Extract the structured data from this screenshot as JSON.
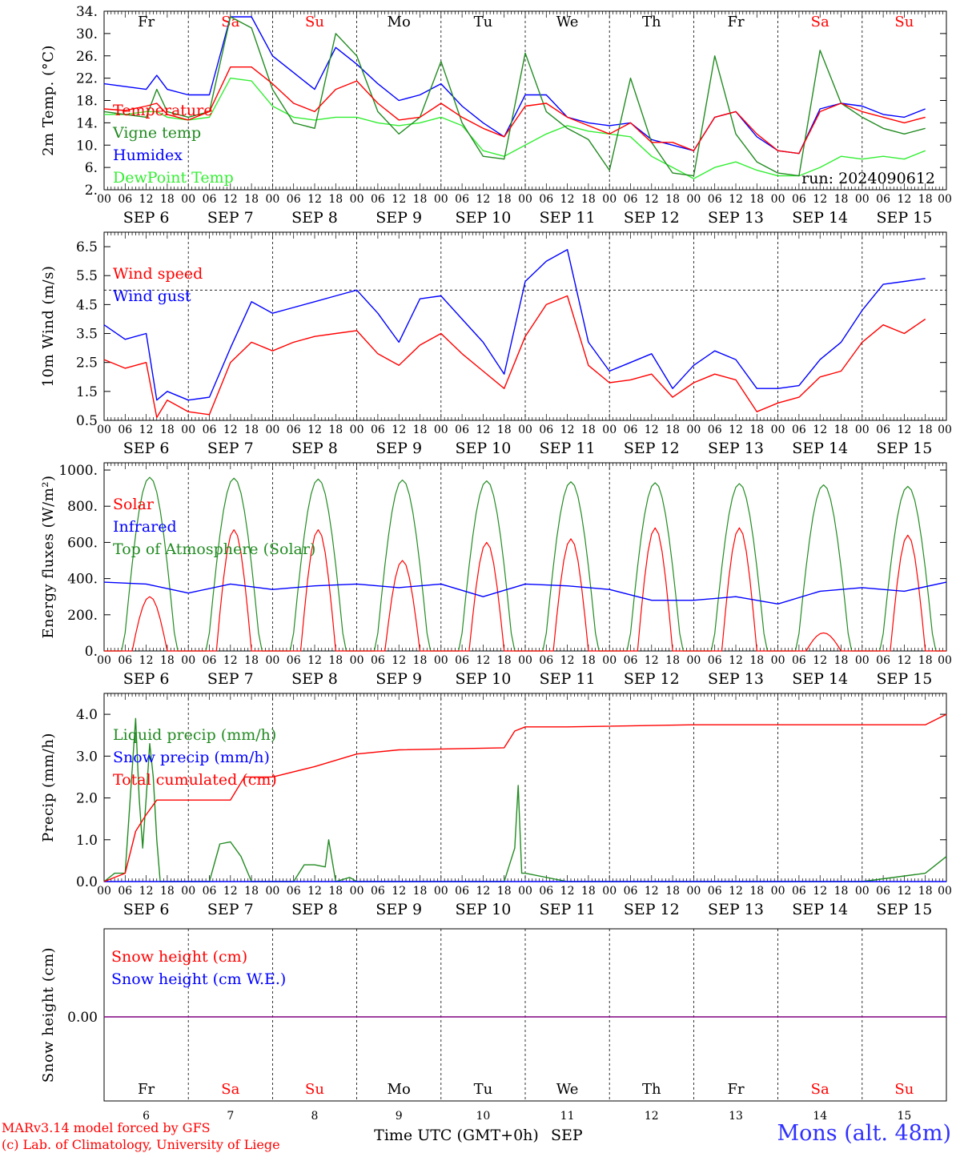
{
  "footer": {
    "model": "MARv3.14 model forced by GFS",
    "credit": "(c) Lab. of Climatology, University of Liege",
    "station": "Mons (alt. 48m)",
    "xaxis_title": "Time UTC (GMT+0h)",
    "month": "SEP"
  },
  "weekdays": [
    "Fr",
    "Sa",
    "Su",
    "Mo",
    "Tu",
    "We",
    "Th",
    "Fr",
    "Sa",
    "Su"
  ],
  "weekend_days": [
    "Sa",
    "Su"
  ],
  "date_labels": [
    "SEP  6",
    "SEP  7",
    "SEP  8",
    "SEP  9",
    "SEP 10",
    "SEP 11",
    "SEP 12",
    "SEP 13",
    "SEP 14",
    "SEP 15"
  ],
  "day_numbers": [
    "6",
    "7",
    "8",
    "9",
    "10",
    "11",
    "12",
    "13",
    "14",
    "15"
  ],
  "hour_ticks": [
    "00",
    "06",
    "12",
    "18"
  ],
  "colors": {
    "red": "#ff0000",
    "darkgreen": "#228b22",
    "blue": "#0000ff",
    "lightgreen": "#33ee33",
    "purple": "#800080",
    "weekend": "#ff0000",
    "weekday": "#000000"
  },
  "chart_data": [
    {
      "type": "line",
      "ylabel": "2m Temp. (°C)",
      "ylim": [
        2,
        34
      ],
      "yticks": [
        "34.",
        "30.",
        "26.",
        "22.",
        "18.",
        "14.",
        "10.",
        "6.",
        "2."
      ],
      "annotation": "run: 2024090612",
      "x_unit": "hours from Sep 6 00:00 UTC",
      "series": [
        {
          "name": "Temperature",
          "color": "red",
          "x": [
            0,
            6,
            12,
            15,
            18,
            24,
            30,
            36,
            42,
            48,
            54,
            60,
            66,
            72,
            78,
            84,
            90,
            96,
            102,
            108,
            114,
            120,
            126,
            132,
            138,
            144,
            150,
            156,
            162,
            168,
            174,
            180,
            186,
            192,
            198,
            204,
            210,
            216,
            222,
            228,
            234
          ],
          "y": [
            16.5,
            16.2,
            17,
            17.5,
            15.5,
            14.5,
            16,
            24,
            24,
            21,
            17.5,
            16,
            20,
            21.5,
            17.5,
            14.5,
            15,
            17.5,
            15,
            13,
            11.5,
            17,
            17.5,
            15,
            13.5,
            12,
            14,
            10.5,
            10.5,
            9,
            15,
            16,
            12,
            9,
            8.5,
            16,
            17.5,
            16,
            15,
            14,
            15
          ]
        },
        {
          "name": "Vigne temp",
          "color": "darkgreen",
          "x": [
            0,
            6,
            12,
            15,
            18,
            24,
            30,
            36,
            42,
            48,
            54,
            60,
            66,
            72,
            78,
            84,
            90,
            96,
            102,
            108,
            114,
            120,
            126,
            132,
            138,
            144,
            150,
            156,
            162,
            168,
            174,
            180,
            186,
            192,
            198,
            204,
            210,
            216,
            222,
            228,
            234
          ],
          "y": [
            16,
            15.5,
            15,
            20,
            16,
            15,
            16,
            33,
            31,
            20,
            14,
            13,
            30,
            26,
            16,
            12,
            15,
            25,
            14,
            8,
            7.5,
            26.5,
            16,
            13,
            11,
            5.5,
            22,
            10.5,
            5,
            4.5,
            26,
            12,
            7,
            5,
            4.5,
            27,
            17.5,
            15,
            13,
            12,
            13
          ]
        },
        {
          "name": "Humidex",
          "color": "blue",
          "x": [
            0,
            6,
            12,
            15,
            18,
            24,
            30,
            36,
            42,
            48,
            54,
            60,
            66,
            72,
            78,
            84,
            90,
            96,
            102,
            108,
            114,
            120,
            126,
            132,
            138,
            144,
            150,
            156,
            162,
            168,
            174,
            180,
            186,
            192,
            198,
            204,
            210,
            216,
            222,
            228,
            234
          ],
          "y": [
            21,
            20.5,
            20,
            22.5,
            20,
            19,
            19,
            33,
            33,
            26,
            23,
            20,
            27.5,
            24.5,
            21,
            18,
            19,
            21,
            17,
            14,
            11.5,
            19,
            19,
            15,
            14,
            13.5,
            14,
            11,
            10,
            9,
            15,
            16,
            11.5,
            9,
            8.5,
            16.5,
            17.5,
            17,
            15.5,
            15,
            16.5
          ]
        },
        {
          "name": "DewPoint Temp",
          "color": "lightgreen",
          "x": [
            0,
            6,
            12,
            15,
            18,
            24,
            30,
            36,
            42,
            48,
            54,
            60,
            66,
            72,
            78,
            84,
            90,
            96,
            102,
            108,
            114,
            120,
            126,
            132,
            138,
            144,
            150,
            156,
            162,
            168,
            174,
            180,
            186,
            192,
            198,
            204,
            210,
            216,
            222,
            228,
            234
          ],
          "y": [
            15.5,
            15.5,
            16,
            16,
            15,
            14.5,
            15,
            22,
            21.5,
            17,
            15,
            14.5,
            15,
            15,
            14,
            13.5,
            14,
            15,
            13.5,
            9,
            8,
            10,
            12,
            13.5,
            12.5,
            12,
            11.5,
            8,
            6,
            4,
            6,
            7,
            5.5,
            4.5,
            4.5,
            6,
            8,
            7.5,
            8,
            7.5,
            9
          ]
        }
      ]
    },
    {
      "type": "line",
      "ylabel": "10m Wind (m/s)",
      "ylim": [
        0.5,
        7
      ],
      "yticks": [
        "6.5",
        "5.5",
        "4.5",
        "3.5",
        "2.5",
        "1.5",
        "0.5"
      ],
      "reference_line": 5.0,
      "series": [
        {
          "name": "Wind speed",
          "color": "red",
          "x": [
            0,
            6,
            12,
            15,
            18,
            24,
            30,
            36,
            42,
            48,
            54,
            60,
            66,
            72,
            78,
            84,
            90,
            96,
            102,
            108,
            114,
            120,
            126,
            132,
            138,
            144,
            150,
            156,
            162,
            168,
            174,
            180,
            186,
            192,
            198,
            204,
            210,
            216,
            222,
            228,
            234
          ],
          "y": [
            2.6,
            2.3,
            2.5,
            0.6,
            1.2,
            0.8,
            0.7,
            2.5,
            3.2,
            2.9,
            3.2,
            3.4,
            3.5,
            3.6,
            2.8,
            2.4,
            3.1,
            3.5,
            2.8,
            2.2,
            1.6,
            3.4,
            4.5,
            4.8,
            2.4,
            1.8,
            1.9,
            2.1,
            1.3,
            1.8,
            2.1,
            1.9,
            0.8,
            1.1,
            1.3,
            2.0,
            2.2,
            3.2,
            3.8,
            3.5,
            4.0
          ]
        },
        {
          "name": "Wind gust",
          "color": "blue",
          "x": [
            0,
            6,
            12,
            15,
            18,
            24,
            30,
            36,
            42,
            48,
            54,
            60,
            66,
            72,
            78,
            84,
            90,
            96,
            102,
            108,
            114,
            120,
            126,
            132,
            138,
            144,
            150,
            156,
            162,
            168,
            174,
            180,
            186,
            192,
            198,
            204,
            210,
            216,
            222,
            228,
            234
          ],
          "y": [
            3.8,
            3.3,
            3.5,
            1.2,
            1.5,
            1.2,
            1.3,
            3.0,
            4.6,
            4.2,
            4.4,
            4.6,
            4.8,
            5.0,
            4.2,
            3.2,
            4.7,
            4.8,
            4.0,
            3.2,
            2.1,
            5.3,
            6.0,
            6.4,
            3.2,
            2.2,
            2.5,
            2.8,
            1.6,
            2.4,
            2.9,
            2.6,
            1.6,
            1.6,
            1.7,
            2.6,
            3.2,
            4.3,
            5.2,
            5.3,
            5.4
          ]
        }
      ]
    },
    {
      "type": "line",
      "ylabel": "Energy fluxes (W/m²)",
      "ylim": [
        0,
        1000
      ],
      "yticks": [
        "1000.",
        "800.",
        "600.",
        "400.",
        "200.",
        "0."
      ],
      "series": [
        {
          "name": "Solar",
          "color": "red",
          "peaks": [
            300,
            670,
            670,
            500,
            600,
            620,
            680,
            680,
            100,
            640
          ]
        },
        {
          "name": "Infrared",
          "color": "blue",
          "x": [
            0,
            12,
            24,
            36,
            48,
            60,
            72,
            84,
            96,
            108,
            120,
            132,
            144,
            156,
            168,
            180,
            192,
            204,
            216,
            228,
            240
          ],
          "y": [
            380,
            370,
            320,
            370,
            340,
            360,
            370,
            350,
            370,
            300,
            370,
            360,
            340,
            280,
            280,
            300,
            260,
            330,
            350,
            330,
            380
          ]
        },
        {
          "name": "Top of Atmosphere (Solar)",
          "color": "darkgreen",
          "peaks": [
            960,
            955,
            950,
            945,
            940,
            935,
            930,
            925,
            918,
            910
          ]
        }
      ]
    },
    {
      "type": "line",
      "ylabel": "Precip (mm/h)",
      "ylim": [
        0,
        4.5
      ],
      "yticks": [
        "4.0",
        "3.0",
        "2.0",
        "1.0",
        "0.0"
      ],
      "series": [
        {
          "name": "Liquid precip (mm/h)",
          "color": "darkgreen",
          "x": [
            0,
            3,
            6,
            9,
            10,
            11,
            12,
            13,
            14,
            15,
            16,
            18,
            30,
            33,
            36,
            39,
            42,
            48,
            54,
            57,
            60,
            63,
            64,
            66,
            70,
            72,
            84,
            96,
            114,
            117,
            118,
            119,
            120,
            132,
            216,
            234,
            240
          ],
          "y": [
            0,
            0.2,
            0.2,
            3.9,
            2.0,
            0.8,
            2.0,
            3.3,
            2.5,
            1.0,
            0,
            0,
            0,
            0.9,
            0.95,
            0.6,
            0,
            0,
            0,
            0.4,
            0.4,
            0.35,
            1.0,
            0,
            0.1,
            0,
            0,
            0,
            0,
            0.8,
            2.3,
            0.2,
            0.2,
            0,
            0,
            0.2,
            0.6
          ]
        },
        {
          "name": "Snow precip (mm/h)",
          "color": "blue",
          "x": [
            0,
            240
          ],
          "y": [
            0,
            0
          ]
        },
        {
          "name": "Total cumulated (cm)",
          "color": "red",
          "x": [
            0,
            6,
            9,
            12,
            15,
            24,
            36,
            40,
            48,
            60,
            66,
            72,
            84,
            114,
            117,
            120,
            132,
            168,
            216,
            234,
            240
          ],
          "y": [
            0,
            0.2,
            1.2,
            1.6,
            1.95,
            1.95,
            1.95,
            2.5,
            2.5,
            2.75,
            2.9,
            3.05,
            3.15,
            3.2,
            3.6,
            3.7,
            3.7,
            3.75,
            3.75,
            3.75,
            4.0
          ]
        }
      ]
    },
    {
      "type": "line",
      "ylabel": "Snow height (cm)",
      "yticks": [
        "0.00"
      ],
      "series": [
        {
          "name": "Snow height (cm)",
          "color": "red",
          "x": [
            0,
            240
          ],
          "y": [
            0,
            0
          ]
        },
        {
          "name": "Snow height (cm W.E.)",
          "color": "blue",
          "x": [
            0,
            240
          ],
          "y": [
            0,
            0
          ]
        }
      ]
    }
  ]
}
